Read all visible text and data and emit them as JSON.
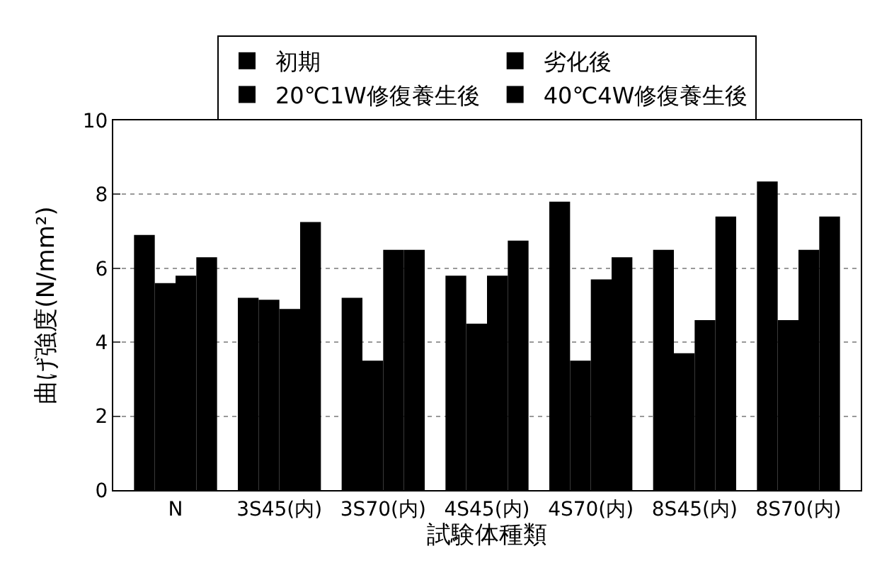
{
  "chart_data": {
    "type": "bar",
    "xlabel": "試験体種類",
    "ylabel": "曲げ強度(N/mm²)",
    "categories": [
      "N",
      "3S45(内)",
      "3S70(内)",
      "4S45(内)",
      "4S70(内)",
      "8S45(内)",
      "8S70(内)"
    ],
    "series": [
      {
        "name": "初期",
        "color": "#000000",
        "values": [
          6.9,
          5.2,
          5.2,
          5.8,
          7.8,
          6.5,
          8.35
        ]
      },
      {
        "name": "劣化後",
        "color": "#000000",
        "values": [
          5.6,
          5.15,
          3.5,
          4.5,
          3.5,
          3.7,
          4.6
        ]
      },
      {
        "name": "20℃1W修復養生後",
        "color": "#000000",
        "values": [
          5.8,
          4.9,
          6.5,
          5.8,
          5.7,
          4.6,
          6.5
        ]
      },
      {
        "name": "40℃4W修復養生後",
        "color": "#000000",
        "values": [
          6.3,
          7.25,
          6.5,
          6.75,
          6.3,
          7.4,
          7.4
        ]
      }
    ],
    "ylim": [
      0,
      10
    ],
    "yticks": [
      0,
      2,
      4,
      6,
      8,
      10
    ],
    "grid": "y",
    "legend": "top"
  }
}
